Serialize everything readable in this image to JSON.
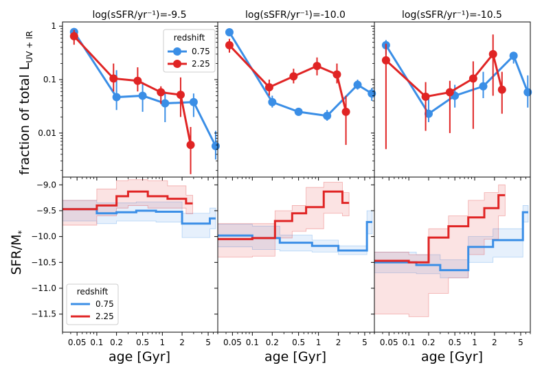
{
  "figure": {
    "xlabel": "age [Gyr]",
    "ylabel_top": "fraction of total L",
    "ylabel_top_sub": "UV + IR",
    "ylabel_bottom": "SFR/M",
    "ylabel_bottom_sub": "*",
    "colors": {
      "z075": "#3a8ee6",
      "z225": "#e02424"
    }
  },
  "legend_top": {
    "title": "redshift",
    "entries": [
      "0.75",
      "2.25"
    ]
  },
  "legend_bottom": {
    "title": "redshift",
    "entries": [
      "0.75",
      "2.25"
    ]
  },
  "chart_data": [
    {
      "type": "line",
      "panel": "top-left",
      "title": "log(sSFR/yr⁻¹)=-9.5",
      "xscale": "log",
      "yscale": "log",
      "xlim": [
        0.03,
        7
      ],
      "ylim": [
        0.0015,
        1.2
      ],
      "series": [
        {
          "name": "0.75",
          "x": [
            0.045,
            0.2,
            0.5,
            1.1,
            3.0,
            6.5
          ],
          "y": [
            0.78,
            0.047,
            0.05,
            0.036,
            0.038,
            0.0057
          ],
          "err_low": [
            0.65,
            0.027,
            0.025,
            0.016,
            0.02,
            0.0032
          ],
          "err_high": [
            0.9,
            0.15,
            0.09,
            0.06,
            0.055,
            0.011
          ]
        },
        {
          "name": "2.25",
          "x": [
            0.045,
            0.18,
            0.42,
            0.95,
            1.9,
            2.7
          ],
          "y": [
            0.65,
            0.105,
            0.095,
            0.058,
            0.052,
            0.006
          ],
          "err_low": [
            0.45,
            0.06,
            0.06,
            0.035,
            0.02,
            0.0017
          ],
          "err_high": [
            0.85,
            0.2,
            0.17,
            0.075,
            0.11,
            0.013
          ]
        }
      ],
      "ytick_labels": [
        "1",
        "0.1",
        "0.01"
      ]
    },
    {
      "type": "line",
      "panel": "top-middle",
      "title": "log(sSFR/yr⁻¹)=-10.0",
      "xscale": "log",
      "yscale": "log",
      "xlim": [
        0.03,
        7
      ],
      "ylim": [
        0.0015,
        1.2
      ],
      "series": [
        {
          "name": "0.75",
          "x": [
            0.045,
            0.2,
            0.5,
            1.35,
            3.9,
            6.4
          ],
          "y": [
            0.77,
            0.038,
            0.025,
            0.021,
            0.08,
            0.055
          ],
          "err_low": [
            0.65,
            0.03,
            0.021,
            0.017,
            0.065,
            0.04
          ],
          "err_high": [
            0.9,
            0.05,
            0.029,
            0.027,
            0.1,
            0.07
          ]
        },
        {
          "name": "2.25",
          "x": [
            0.045,
            0.18,
            0.42,
            0.95,
            1.9,
            2.6
          ],
          "y": [
            0.44,
            0.072,
            0.115,
            0.18,
            0.125,
            0.025
          ],
          "err_low": [
            0.32,
            0.05,
            0.085,
            0.12,
            0.085,
            0.006
          ],
          "err_high": [
            0.58,
            0.1,
            0.16,
            0.26,
            0.2,
            0.05
          ]
        }
      ]
    },
    {
      "type": "line",
      "panel": "top-right",
      "title": "log(sSFR/yr⁻¹)=-10.5",
      "xscale": "log",
      "yscale": "log",
      "xlim": [
        0.03,
        7
      ],
      "ylim": [
        0.0015,
        1.2
      ],
      "series": [
        {
          "name": "0.75",
          "x": [
            0.045,
            0.2,
            0.5,
            1.35,
            3.9,
            6.4
          ],
          "y": [
            0.44,
            0.023,
            0.05,
            0.075,
            0.28,
            0.058
          ],
          "err_low": [
            0.3,
            0.016,
            0.03,
            0.045,
            0.2,
            0.03
          ],
          "err_high": [
            0.55,
            0.05,
            0.08,
            0.14,
            0.3,
            0.12
          ]
        },
        {
          "name": "2.25",
          "x": [
            0.045,
            0.18,
            0.42,
            0.95,
            1.9,
            2.6
          ],
          "y": [
            0.23,
            0.048,
            0.058,
            0.105,
            0.3,
            0.065
          ],
          "err_low": [
            0.005,
            0.011,
            0.01,
            0.012,
            0.05,
            0.023
          ],
          "err_high": [
            0.47,
            0.09,
            0.095,
            0.22,
            0.7,
            0.14
          ]
        }
      ]
    },
    {
      "type": "area",
      "panel": "bottom-left",
      "xscale": "log",
      "xlim": [
        0.03,
        7
      ],
      "ylim": [
        -11.85,
        -8.85
      ],
      "series": [
        {
          "name": "0.75",
          "edges": [
            0.03,
            0.1,
            0.2,
            0.4,
            0.8,
            2.0,
            5.3,
            6.5
          ],
          "values": [
            -9.47,
            -9.55,
            -9.53,
            -9.5,
            -9.52,
            -9.75,
            -9.65
          ],
          "lower": [
            -9.7,
            -9.75,
            -9.7,
            -9.7,
            -9.72,
            -10.02,
            -9.85
          ],
          "upper": [
            -9.3,
            -9.35,
            -9.35,
            -9.33,
            -9.33,
            -9.55,
            -9.45
          ]
        },
        {
          "name": "2.25",
          "edges": [
            0.03,
            0.1,
            0.2,
            0.3,
            0.6,
            1.2,
            2.3,
            2.9
          ],
          "values": [
            -9.47,
            -9.4,
            -9.22,
            -9.13,
            -9.22,
            -9.27,
            -9.36
          ],
          "lower": [
            -9.78,
            -9.6,
            -9.45,
            -9.4,
            -9.45,
            -9.45,
            -9.56
          ],
          "upper": [
            -9.3,
            -9.08,
            -8.92,
            -8.9,
            -8.92,
            -9.02,
            -9.2
          ]
        }
      ],
      "ytick_labels": [
        "-9.0",
        "-9.5",
        "-10.0",
        "-10.5",
        "-11.0",
        "-11.5"
      ]
    },
    {
      "type": "area",
      "panel": "bottom-middle",
      "xscale": "log",
      "xlim": [
        0.03,
        7
      ],
      "ylim": [
        -11.85,
        -8.85
      ],
      "series": [
        {
          "name": "0.75",
          "edges": [
            0.03,
            0.1,
            0.26,
            0.8,
            2.0,
            5.4,
            6.5
          ],
          "values": [
            -9.98,
            -10.03,
            -10.12,
            -10.18,
            -10.27,
            -9.72
          ],
          "lower": [
            -10.2,
            -10.25,
            -10.28,
            -10.3,
            -10.35,
            -9.95
          ],
          "upper": [
            -9.76,
            -9.8,
            -9.97,
            -10.07,
            -10.18,
            -9.5
          ]
        },
        {
          "name": "2.25",
          "edges": [
            0.03,
            0.1,
            0.22,
            0.4,
            0.65,
            1.2,
            2.3,
            2.9
          ],
          "values": [
            -10.05,
            -10.03,
            -9.7,
            -9.55,
            -9.43,
            -9.13,
            -9.35
          ],
          "lower": [
            -10.4,
            -10.38,
            -10.03,
            -9.9,
            -9.85,
            -9.55,
            -9.6
          ],
          "upper": [
            -9.75,
            -9.75,
            -9.5,
            -9.4,
            -9.05,
            -8.95,
            -9.15
          ]
        }
      ]
    },
    {
      "type": "area",
      "panel": "bottom-right",
      "xscale": "log",
      "xlim": [
        0.03,
        7
      ],
      "ylim": [
        -11.85,
        -8.85
      ],
      "series": [
        {
          "name": "0.75",
          "edges": [
            0.03,
            0.13,
            0.3,
            0.8,
            1.9,
            5.4,
            6.5
          ],
          "values": [
            -10.5,
            -10.55,
            -10.65,
            -10.2,
            -10.07,
            -9.53
          ],
          "lower": [
            -10.7,
            -10.72,
            -10.8,
            -10.5,
            -10.4,
            -9.72
          ],
          "upper": [
            -10.3,
            -10.35,
            -10.45,
            -10.0,
            -9.85,
            -9.4
          ]
        },
        {
          "name": "2.25",
          "edges": [
            0.03,
            0.1,
            0.2,
            0.4,
            0.8,
            1.4,
            2.3,
            2.9
          ],
          "values": [
            -10.47,
            -10.5,
            -10.02,
            -9.8,
            -9.63,
            -9.45,
            -9.2
          ],
          "lower": [
            -11.5,
            -11.55,
            -11.1,
            -10.8,
            -10.35,
            -10.05,
            -9.6
          ],
          "upper": [
            -10.3,
            -10.35,
            -9.85,
            -9.6,
            -9.3,
            -9.15,
            -9.0
          ]
        }
      ]
    }
  ],
  "x_ticks": [
    "0.05",
    "0.1",
    "0.2",
    "0.5",
    "1",
    "2",
    "5"
  ]
}
